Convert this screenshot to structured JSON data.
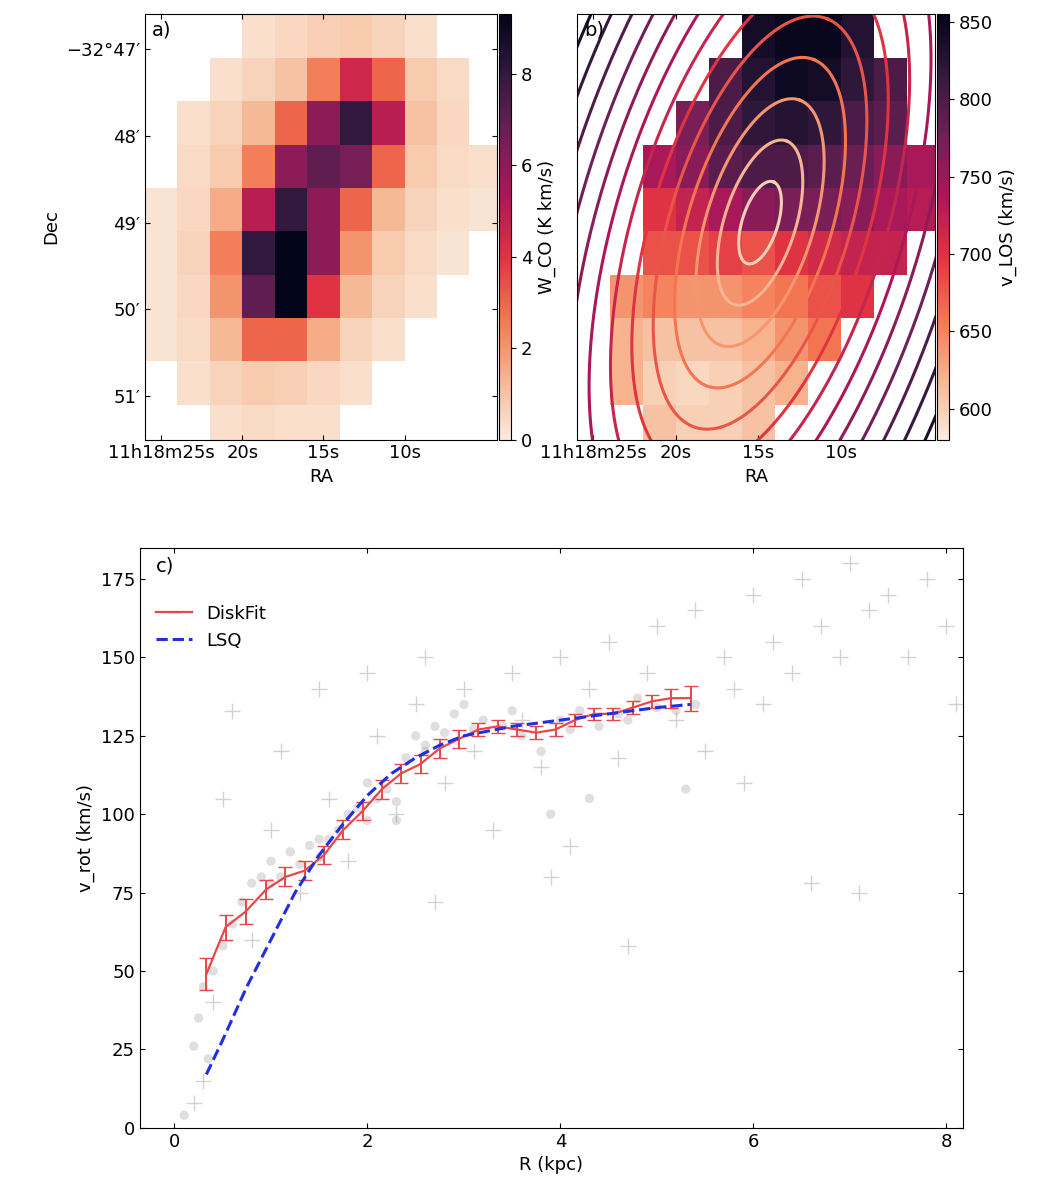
{
  "chart_data": [
    {
      "type": "heatmap",
      "title": "a)",
      "xlabel": "RA",
      "ylabel": "Dec",
      "x_edges": [
        26,
        24,
        22,
        20,
        18,
        16,
        14,
        12,
        10,
        8,
        6,
        4
      ],
      "y_edges": [
        46.6,
        47.1,
        47.6,
        48.1,
        48.6,
        49.1,
        49.6,
        50.1,
        50.6,
        51.1,
        51.6
      ],
      "cells": [
        [
          null,
          null,
          null,
          0.3,
          0.5,
          0.7,
          0.8,
          0.6,
          0.3,
          null,
          null
        ],
        [
          null,
          null,
          0.3,
          0.6,
          1.0,
          2.5,
          4.5,
          3.0,
          0.8,
          0.4,
          null
        ],
        [
          null,
          0.3,
          0.6,
          1.2,
          3.0,
          6.0,
          8.0,
          5.0,
          1.0,
          0.5,
          null
        ],
        [
          null,
          0.4,
          0.8,
          2.5,
          6.0,
          7.0,
          6.5,
          3.0,
          0.8,
          0.4,
          0.3
        ],
        [
          0.2,
          0.5,
          1.5,
          5.0,
          8.0,
          6.0,
          3.0,
          1.2,
          0.6,
          0.3,
          0.2
        ],
        [
          0.2,
          0.6,
          2.5,
          8.0,
          9.5,
          6.0,
          2.0,
          0.8,
          0.4,
          0.2,
          null
        ],
        [
          0.2,
          0.5,
          2.0,
          7.0,
          9.5,
          4.0,
          1.2,
          0.6,
          0.3,
          null,
          null
        ],
        [
          0.2,
          0.4,
          1.2,
          3.0,
          3.0,
          1.5,
          0.6,
          0.3,
          null,
          null,
          null
        ],
        [
          null,
          0.3,
          0.6,
          0.8,
          0.7,
          0.5,
          0.3,
          null,
          null,
          null,
          null
        ],
        [
          null,
          null,
          0.3,
          0.4,
          0.3,
          0.3,
          null,
          null,
          null,
          null,
          null
        ]
      ],
      "xlim": [
        26.0,
        4.3
      ],
      "ylim": [
        51.5,
        46.6
      ],
      "xticks": [
        {
          "value": 25,
          "label": "11h18m25s"
        },
        {
          "value": 20,
          "label": "20s"
        },
        {
          "value": 15,
          "label": "15s"
        },
        {
          "value": 10,
          "label": "10s"
        }
      ],
      "yticks": [
        {
          "value": 47,
          "label": "−32°47′"
        },
        {
          "value": 48,
          "label": "48′"
        },
        {
          "value": 49,
          "label": "49′"
        },
        {
          "value": 50,
          "label": "50′"
        },
        {
          "value": 51,
          "label": "51′"
        }
      ],
      "colorbar": {
        "label": "W_CO (K km/s)",
        "range": [
          0,
          9.3
        ],
        "ticks": [
          0,
          2,
          4,
          6,
          8
        ]
      }
    },
    {
      "type": "heatmap",
      "title": "b)",
      "xlabel": "RA",
      "tick_labels": "x",
      "x_edges": [
        26,
        24,
        22,
        20,
        18,
        16,
        14,
        12,
        10,
        8,
        6,
        4
      ],
      "y_edges": [
        46.6,
        47.1,
        47.6,
        48.1,
        48.6,
        49.1,
        49.6,
        50.1,
        50.6,
        51.1,
        51.6
      ],
      "cells": [
        [
          null,
          null,
          null,
          null,
          null,
          840,
          850,
          850,
          830,
          null,
          null
        ],
        [
          null,
          null,
          null,
          null,
          800,
          830,
          845,
          840,
          820,
          800,
          null
        ],
        [
          null,
          null,
          null,
          770,
          800,
          820,
          830,
          820,
          800,
          790,
          null
        ],
        [
          null,
          null,
          740,
          760,
          790,
          800,
          800,
          790,
          780,
          760,
          740
        ],
        [
          null,
          null,
          700,
          720,
          740,
          760,
          770,
          770,
          760,
          740,
          730
        ],
        [
          null,
          null,
          680,
          680,
          690,
          680,
          700,
          710,
          720,
          720,
          null
        ],
        [
          null,
          640,
          650,
          640,
          640,
          650,
          660,
          680,
          700,
          null,
          null
        ],
        [
          null,
          620,
          610,
          610,
          610,
          620,
          640,
          660,
          null,
          null,
          null
        ],
        [
          null,
          620,
          600,
          595,
          600,
          610,
          620,
          null,
          null,
          null,
          null
        ],
        [
          null,
          null,
          610,
          600,
          600,
          610,
          null,
          null,
          null,
          null,
          null
        ]
      ],
      "ellipses": {
        "center": [
          14.9,
          49.0
        ],
        "dec_deg": -32.82,
        "position_angle": -20,
        "axis_ratio": 0.45,
        "semi_major": [
          0.5,
          1.0,
          1.5,
          2.0,
          2.5,
          3.0,
          3.5,
          4.0,
          4.5,
          5.0,
          5.5,
          6.0,
          6.5,
          7.0
        ]
      },
      "xlim": [
        26.0,
        4.3
      ],
      "ylim": [
        51.5,
        46.6
      ],
      "xticks": [
        {
          "value": 25,
          "label": "11h18m25s"
        },
        {
          "value": 20,
          "label": "20s"
        },
        {
          "value": 15,
          "label": "15s"
        },
        {
          "value": 10,
          "label": "10s"
        }
      ],
      "colorbar": {
        "label": "v_LOS (km/s)",
        "range": [
          580,
          855
        ],
        "ticks": [
          600,
          650,
          700,
          750,
          800,
          850
        ]
      }
    },
    {
      "type": "scatter",
      "title": "c)",
      "xlabel": "R (kpc)",
      "ylabel": "v_rot (km/s)",
      "xlim": [
        -0.36,
        8.17
      ],
      "ylim": [
        0,
        185
      ],
      "xticks": [
        0,
        2,
        4,
        6,
        8
      ],
      "yticks": [
        0,
        25,
        50,
        75,
        100,
        125,
        150,
        175
      ],
      "legend": "upper left",
      "series": [
        {
          "type": "scatter",
          "marker": "plus",
          "color": "#808080",
          "x": [
            0.2,
            0.3,
            0.4,
            0.5,
            0.6,
            0.8,
            1.0,
            1.1,
            1.3,
            1.5,
            1.6,
            1.8,
            2.0,
            2.1,
            2.3,
            2.5,
            2.6,
            2.8,
            3.0,
            3.1,
            3.3,
            3.5,
            3.6,
            3.8,
            4.0,
            4.1,
            4.3,
            4.5,
            4.6,
            4.7,
            4.9,
            5.0,
            5.2,
            5.4,
            5.5,
            5.7,
            5.8,
            6.0,
            6.1,
            6.2,
            6.4,
            6.5,
            6.6,
            6.7,
            6.9,
            7.0,
            7.1,
            7.2,
            7.4,
            7.6,
            7.8,
            8.0,
            8.1,
            5.9,
            3.9,
            2.7
          ],
          "values": [
            8,
            15,
            40,
            105,
            133,
            60,
            95,
            120,
            75,
            140,
            105,
            85,
            145,
            125,
            100,
            135,
            150,
            110,
            140,
            120,
            95,
            145,
            130,
            115,
            150,
            90,
            140,
            155,
            118,
            58,
            145,
            160,
            130,
            165,
            120,
            150,
            140,
            170,
            135,
            155,
            145,
            175,
            78,
            160,
            150,
            180,
            75,
            165,
            170,
            150,
            175,
            160,
            135,
            110,
            80,
            72
          ]
        },
        {
          "type": "scatter",
          "marker": "circle",
          "color": "#808080",
          "x": [
            0.1,
            0.2,
            0.25,
            0.3,
            0.35,
            0.4,
            0.5,
            0.6,
            0.7,
            0.8,
            0.9,
            1.0,
            1.1,
            1.2,
            1.3,
            1.4,
            1.5,
            1.6,
            1.7,
            1.8,
            1.9,
            2.0,
            2.1,
            2.2,
            2.3,
            2.4,
            2.5,
            2.6,
            2.7,
            2.8,
            2.9,
            3.0,
            3.2,
            3.4,
            3.6,
            3.8,
            4.0,
            4.2,
            4.4,
            4.6,
            4.8,
            5.0,
            5.2,
            5.4,
            3.9,
            4.3,
            5.3,
            2.3,
            1.0,
            1.5,
            2.0,
            2.6,
            3.1,
            3.5,
            4.1,
            4.7
          ],
          "values": [
            4,
            26,
            35,
            45,
            22,
            50,
            58,
            65,
            72,
            78,
            80,
            85,
            80,
            88,
            84,
            90,
            86,
            92,
            95,
            100,
            102,
            98,
            105,
            108,
            104,
            118,
            125,
            120,
            128,
            126,
            132,
            135,
            130,
            128,
            125,
            120,
            130,
            133,
            128,
            132,
            137,
            134,
            133,
            135,
            100,
            105,
            108,
            98,
            78,
            92,
            110,
            122,
            127,
            133,
            127,
            130
          ]
        },
        {
          "type": "line",
          "name": "DiskFit",
          "color": "#e8474a",
          "line_style": "solid",
          "x": [
            0.33,
            0.53,
            0.74,
            0.95,
            1.15,
            1.35,
            1.55,
            1.75,
            1.95,
            2.15,
            2.35,
            2.55,
            2.75,
            2.95,
            3.15,
            3.35,
            3.55,
            3.75,
            3.95,
            4.15,
            4.35,
            4.55,
            4.75,
            4.95,
            5.15,
            5.35
          ],
          "values": [
            49,
            64,
            69,
            76,
            80,
            82,
            87,
            95,
            101,
            108,
            113,
            116,
            121,
            124,
            127,
            128,
            127,
            126,
            127,
            130,
            132,
            132,
            134,
            136,
            137,
            137
          ],
          "errors": [
            5,
            4,
            4,
            3,
            3,
            3,
            3,
            3,
            3,
            3,
            3,
            3,
            3,
            3,
            2,
            2,
            2,
            2,
            2,
            2,
            2,
            2,
            2,
            2,
            3,
            4
          ]
        },
        {
          "type": "line",
          "name": "LSQ",
          "color": "#1f30e0",
          "line_style": "dashed",
          "x": [
            0.33,
            0.5,
            0.75,
            1.0,
            1.25,
            1.5,
            1.75,
            2.0,
            2.25,
            2.5,
            2.75,
            3.0,
            3.5,
            4.0,
            4.5,
            5.0,
            5.35
          ],
          "values": [
            17,
            28,
            45,
            60,
            75,
            87,
            97,
            106,
            113,
            118,
            122,
            125,
            128,
            130,
            132,
            134,
            135
          ]
        }
      ]
    }
  ]
}
